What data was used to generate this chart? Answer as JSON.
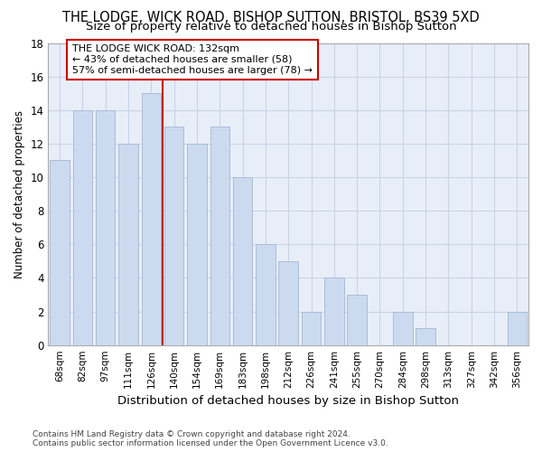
{
  "title": "THE LODGE, WICK ROAD, BISHOP SUTTON, BRISTOL, BS39 5XD",
  "subtitle": "Size of property relative to detached houses in Bishop Sutton",
  "xlabel": "Distribution of detached houses by size in Bishop Sutton",
  "ylabel": "Number of detached properties",
  "categories": [
    "68sqm",
    "82sqm",
    "97sqm",
    "111sqm",
    "126sqm",
    "140sqm",
    "154sqm",
    "169sqm",
    "183sqm",
    "198sqm",
    "212sqm",
    "226sqm",
    "241sqm",
    "255sqm",
    "270sqm",
    "284sqm",
    "298sqm",
    "313sqm",
    "327sqm",
    "342sqm",
    "356sqm"
  ],
  "values": [
    11,
    14,
    14,
    12,
    15,
    13,
    12,
    13,
    10,
    6,
    5,
    2,
    4,
    3,
    0,
    2,
    1,
    0,
    0,
    0,
    2
  ],
  "bar_color": "#ccdaf0",
  "bar_edgecolor": "#aabdd8",
  "reference_line_x": 4.5,
  "reference_label": "THE LODGE WICK ROAD: 132sqm",
  "annotation_line1": "← 43% of detached houses are smaller (58)",
  "annotation_line2": "57% of semi-detached houses are larger (78) →",
  "annotation_box_color": "#ffffff",
  "annotation_box_edgecolor": "#cc0000",
  "ref_line_color": "#cc0000",
  "ylim": [
    0,
    18
  ],
  "yticks": [
    0,
    2,
    4,
    6,
    8,
    10,
    12,
    14,
    16,
    18
  ],
  "grid_color": "#c8d4e8",
  "footer1": "Contains HM Land Registry data © Crown copyright and database right 2024.",
  "footer2": "Contains public sector information licensed under the Open Government Licence v3.0.",
  "title_fontsize": 10.5,
  "subtitle_fontsize": 9.5,
  "xlabel_fontsize": 9.5,
  "ylabel_fontsize": 8.5,
  "bar_width": 0.85,
  "plot_bg": "#e8eef8"
}
